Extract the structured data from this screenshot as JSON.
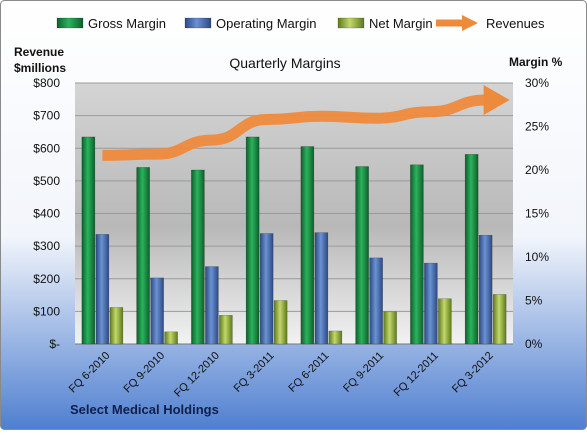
{
  "chart_data": {
    "type": "bar",
    "title": "Quarterly Margins",
    "left_axis_label_line1": "Revenue",
    "left_axis_label_line2": "$millions",
    "right_axis_label": "Margin  %",
    "footer": "Select Medical Holdings",
    "categories": [
      "FQ 6-2010",
      "FQ 9-2010",
      "FQ 12-2010",
      "FQ 3-2011",
      "FQ 6-2011",
      "FQ 9-2011",
      "FQ 12-2011",
      "FQ 3-2012"
    ],
    "left_axis": {
      "range": [
        0,
        800
      ],
      "ticks": [
        0,
        100,
        200,
        300,
        400,
        500,
        600,
        700,
        800
      ],
      "tick_labels": [
        "$-",
        "$100",
        "$200",
        "$300",
        "$400",
        "$500",
        "$600",
        "$700",
        "$800"
      ]
    },
    "right_axis": {
      "range": [
        0,
        30
      ],
      "ticks": [
        0,
        5,
        10,
        15,
        20,
        25,
        30
      ],
      "tick_labels": [
        "0%",
        "5%",
        "10%",
        "15%",
        "20%",
        "25%",
        "30%"
      ]
    },
    "series": [
      {
        "name": "Gross Margin",
        "kind": "bar",
        "axis": "right",
        "color": "#1f9a4a",
        "values": [
          23.8,
          20.3,
          20.0,
          23.8,
          22.7,
          20.4,
          20.6,
          21.8
        ]
      },
      {
        "name": "Operating Margin",
        "kind": "bar",
        "axis": "right",
        "color": "#4a73b5",
        "values": [
          12.6,
          7.6,
          8.9,
          12.7,
          12.8,
          9.9,
          9.3,
          12.5
        ]
      },
      {
        "name": "Net Margin",
        "kind": "bar",
        "axis": "right",
        "color": "#9bb63c",
        "values": [
          4.2,
          1.4,
          3.3,
          5.0,
          1.5,
          3.7,
          5.2,
          5.7
        ]
      },
      {
        "name": "Revenues",
        "kind": "line",
        "axis": "left",
        "color": "#ee8a3c",
        "values": [
          578,
          582,
          625,
          688,
          698,
          692,
          712,
          748
        ]
      }
    ],
    "grid": true,
    "legend_position": "top"
  }
}
